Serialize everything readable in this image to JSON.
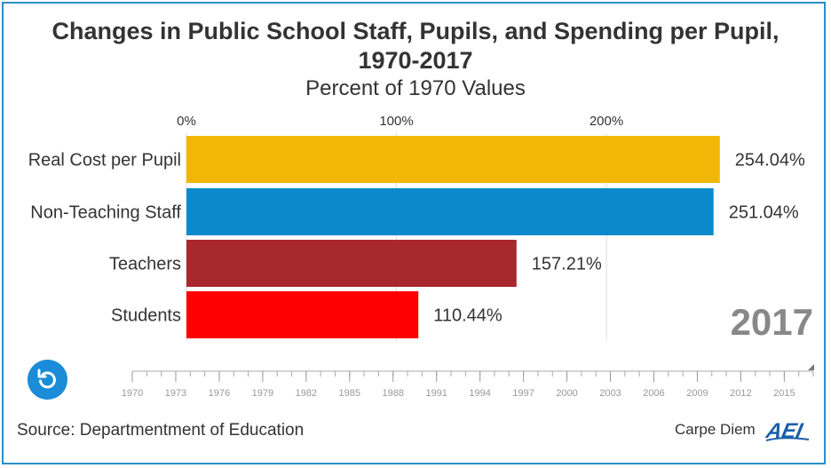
{
  "title": "Changes in Public School Staff, Pupils, and Spending per Pupil, 1970-2017",
  "subtitle": "Percent of 1970 Values",
  "source": "Source: Departmentment of Education",
  "brand": {
    "text": "Carpe Diem",
    "logo": "AEI"
  },
  "current_year": "2017",
  "replay_icon": "replay-icon",
  "colors": {
    "frame": "#2a8fc8",
    "accent": "#1a8cd8"
  },
  "chart_data": {
    "type": "bar",
    "orientation": "horizontal",
    "title": "Changes in Public School Staff, Pupils, and Spending per Pupil, 1970-2017",
    "subtitle": "Percent of 1970 Values",
    "categories": [
      "Real Cost per Pupil",
      "Non-Teaching Staff",
      "Teachers",
      "Students"
    ],
    "values": [
      254.04,
      251.04,
      157.21,
      110.44
    ],
    "value_labels": [
      "254.04%",
      "251.04%",
      "157.21%",
      "110.44%"
    ],
    "colors": [
      "#f2b705",
      "#0a8acb",
      "#a8282e",
      "#ff0000"
    ],
    "x_ticks": [
      0,
      100,
      200
    ],
    "x_tick_labels": [
      "0%",
      "100%",
      "200%"
    ],
    "xlim": [
      0,
      300
    ],
    "grid": true,
    "axis_position": "top",
    "timeline": {
      "start": 1970,
      "end": 2017,
      "current": 2017,
      "tick_labels": [
        "1970",
        "1973",
        "1976",
        "1979",
        "1982",
        "1985",
        "1988",
        "1991",
        "1994",
        "1997",
        "2000",
        "2003",
        "2006",
        "2009",
        "2012",
        "2015"
      ]
    }
  }
}
